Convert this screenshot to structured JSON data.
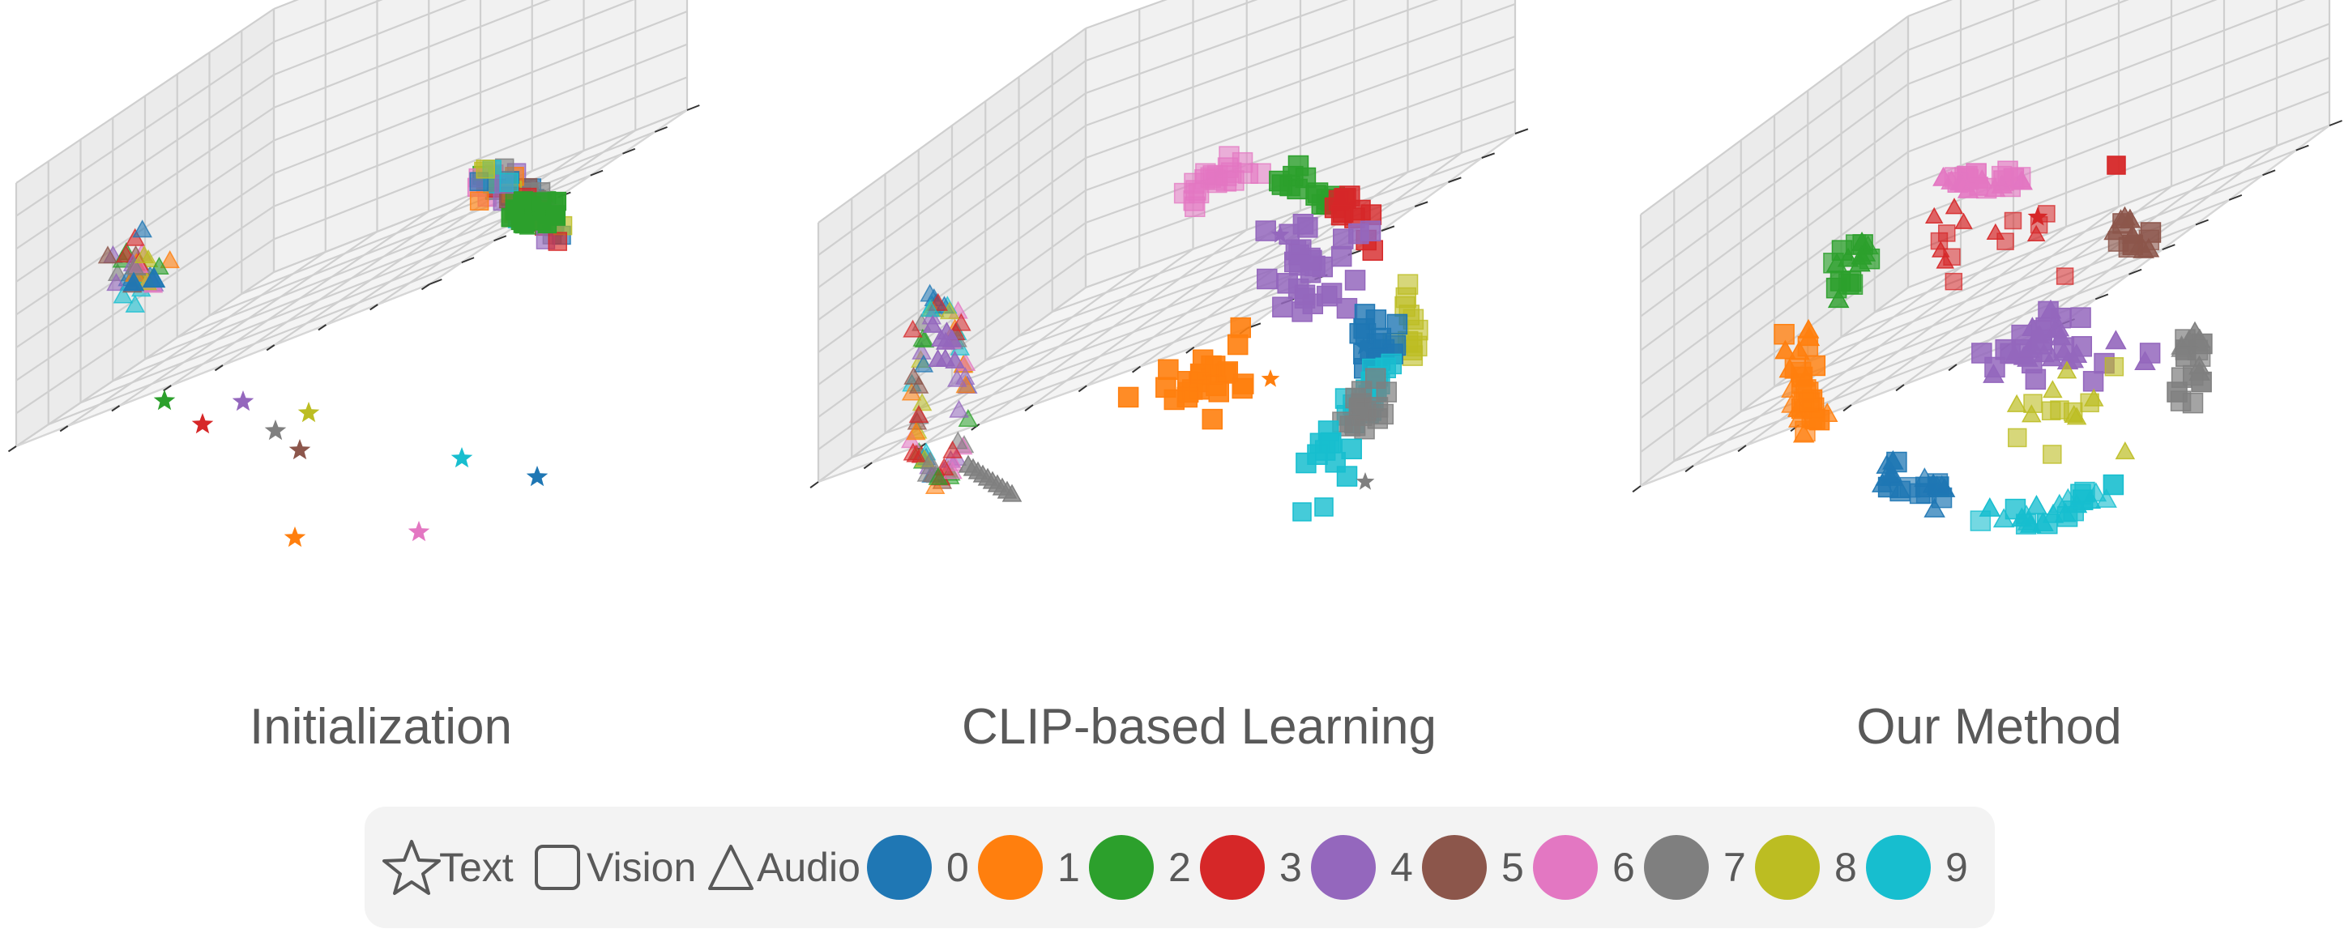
{
  "colors": {
    "0": "#1f77b4",
    "1": "#ff7f0e",
    "2": "#2ca02c",
    "3": "#d62728",
    "4": "#9467bd",
    "5": "#8c564b",
    "6": "#e377c2",
    "7": "#7f7f7f",
    "8": "#bcbd22",
    "9": "#17becf"
  },
  "chart_data": [
    {
      "type": "scatter",
      "title": "Initialization",
      "grid": true,
      "description_of_clusters": [],
      "clusters": [
        {
          "modality": "Audio",
          "classes": [
            0,
            1,
            2,
            3,
            4,
            5,
            6,
            7,
            8,
            9
          ],
          "region": "left-compact",
          "center": [
            0.12,
            0.56,
            0.62
          ],
          "spread": 0.025,
          "count": 40
        },
        {
          "modality": "Vision",
          "classes": [
            0,
            1,
            2,
            3,
            4,
            5,
            6,
            7,
            8,
            9
          ],
          "region": "upper-right-compact",
          "center": [
            0.88,
            0.42,
            0.72
          ],
          "spread": 0.035,
          "count": 60
        }
      ],
      "text_points": [
        {
          "class": 0,
          "pos": [
            0.78,
            0.68,
            0.3
          ]
        },
        {
          "class": 1,
          "pos": [
            0.47,
            0.96,
            0.22
          ]
        },
        {
          "class": 2,
          "pos": [
            0.08,
            0.68,
            0.45
          ]
        },
        {
          "class": 3,
          "pos": [
            0.13,
            0.73,
            0.4
          ]
        },
        {
          "class": 4,
          "pos": [
            0.22,
            0.62,
            0.44
          ]
        },
        {
          "class": 5,
          "pos": [
            0.3,
            0.73,
            0.38
          ]
        },
        {
          "class": 6,
          "pos": [
            0.62,
            0.85,
            0.28
          ]
        },
        {
          "class": 7,
          "pos": [
            0.28,
            0.69,
            0.4
          ]
        },
        {
          "class": 8,
          "pos": [
            0.31,
            0.62,
            0.43
          ]
        },
        {
          "class": 9,
          "pos": [
            0.65,
            0.65,
            0.34
          ]
        }
      ]
    },
    {
      "type": "scatter",
      "title": "CLIP-based Learning",
      "grid": true,
      "clusters": [
        {
          "modality": "Audio",
          "classes": [
            0,
            1,
            2,
            3,
            4,
            5,
            6,
            7,
            8,
            9
          ],
          "region": "left-ring",
          "count": 70
        },
        {
          "modality": "Vision",
          "classes": [
            0,
            1,
            2,
            3,
            4,
            5,
            6,
            7,
            8,
            9
          ],
          "region": "right-arc",
          "count": 160
        }
      ]
    },
    {
      "type": "scatter",
      "title": "Our Method",
      "grid": true,
      "clusters": [
        {
          "modality": "mixed",
          "classes": [
            0,
            1,
            2,
            3,
            4,
            5,
            6,
            7,
            8,
            9
          ],
          "region": "ring-by-class",
          "count": 280
        }
      ]
    }
  ],
  "legend": {
    "modalities": [
      {
        "name": "Text",
        "icon": "star-icon"
      },
      {
        "name": "Vision",
        "icon": "square-icon"
      },
      {
        "name": "Audio",
        "icon": "triangle-icon"
      }
    ],
    "classes": [
      "0",
      "1",
      "2",
      "3",
      "4",
      "5",
      "6",
      "7",
      "8",
      "9"
    ]
  }
}
